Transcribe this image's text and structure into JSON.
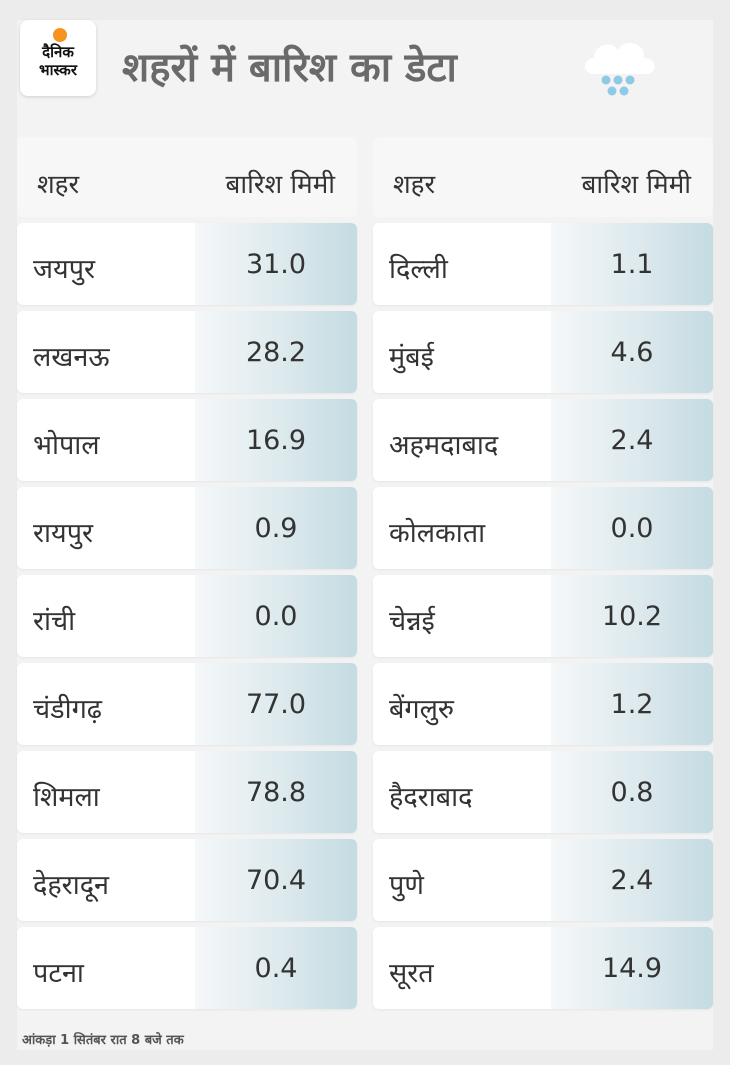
{
  "brand": {
    "line1": "दैनिक",
    "line2": "भास्कर",
    "dot_color": "#f7931e"
  },
  "title": "शहरों में बारिश का डेटा",
  "icon": "rain-cloud-icon",
  "headers": {
    "city": "शहर",
    "rain": "बारिश मिमी"
  },
  "footnote": "आंकड़ा 1 सितंबर रात 8 बजे तक",
  "chart_data": {
    "type": "table",
    "title": "शहरों में बारिश का डेटा",
    "columns": [
      "शहर",
      "बारिश मिमी"
    ],
    "left": [
      {
        "city": "जयपुर",
        "rain": "31.0"
      },
      {
        "city": "लखनऊ",
        "rain": "28.2"
      },
      {
        "city": "भोपाल",
        "rain": "16.9"
      },
      {
        "city": "रायपुर",
        "rain": "0.9"
      },
      {
        "city": "रांची",
        "rain": "0.0"
      },
      {
        "city": "चंडीगढ़",
        "rain": "77.0"
      },
      {
        "city": "शिमला",
        "rain": "78.8"
      },
      {
        "city": "देहरादून",
        "rain": "70.4"
      },
      {
        "city": "पटना",
        "rain": "0.4"
      }
    ],
    "right": [
      {
        "city": "दिल्ली",
        "rain": "1.1"
      },
      {
        "city": "मुंबई",
        "rain": "4.6"
      },
      {
        "city": "अहमदाबाद",
        "rain": "2.4"
      },
      {
        "city": "कोलकाता",
        "rain": "0.0"
      },
      {
        "city": "चेन्नई",
        "rain": "10.2"
      },
      {
        "city": "बेंगलुरु",
        "rain": "1.2"
      },
      {
        "city": "हैदराबाद",
        "rain": "0.8"
      },
      {
        "city": "पुणे",
        "rain": "2.4"
      },
      {
        "city": "सूरत",
        "rain": "14.9"
      }
    ]
  }
}
